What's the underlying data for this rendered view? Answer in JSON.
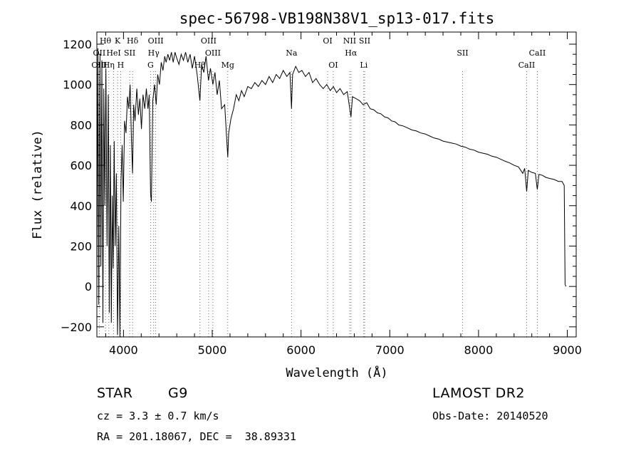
{
  "chart_data": {
    "type": "line",
    "title": "spec-56798-VB198N38V1_sp13-017.fits",
    "xlabel": "Wavelength (Å)",
    "ylabel": "Flux (relative)",
    "xlim": [
      3700,
      9100
    ],
    "ylim": [
      -250,
      1260
    ],
    "xticks": [
      4000,
      5000,
      6000,
      7000,
      8000,
      9000
    ],
    "yticks": [
      -200,
      0,
      200,
      400,
      600,
      800,
      1000,
      1200
    ],
    "grid": false,
    "series": [
      {
        "values": [
          [
            3700,
            -80
          ],
          [
            3712,
            1180
          ],
          [
            3722,
            -90
          ],
          [
            3735,
            1150
          ],
          [
            3745,
            100
          ],
          [
            3756,
            1120
          ],
          [
            3768,
            -180
          ],
          [
            3778,
            980
          ],
          [
            3790,
            400
          ],
          [
            3802,
            1080
          ],
          [
            3815,
            200
          ],
          [
            3828,
            950
          ],
          [
            3840,
            -130
          ],
          [
            3852,
            700
          ],
          [
            3863,
            -180
          ],
          [
            3873,
            450
          ],
          [
            3884,
            90
          ],
          [
            3895,
            720
          ],
          [
            3906,
            200
          ],
          [
            3920,
            560
          ],
          [
            3933,
            -240
          ],
          [
            3947,
            300
          ],
          [
            3960,
            -250
          ],
          [
            3972,
            520
          ],
          [
            3985,
            700
          ],
          [
            3998,
            420
          ],
          [
            4012,
            820
          ],
          [
            4028,
            760
          ],
          [
            4045,
            940
          ],
          [
            4060,
            880
          ],
          [
            4075,
            1000
          ],
          [
            4090,
            720
          ],
          [
            4102,
            560
          ],
          [
            4115,
            900
          ],
          [
            4130,
            820
          ],
          [
            4150,
            980
          ],
          [
            4168,
            850
          ],
          [
            4185,
            930
          ],
          [
            4202,
            780
          ],
          [
            4220,
            950
          ],
          [
            4240,
            880
          ],
          [
            4258,
            980
          ],
          [
            4275,
            880
          ],
          [
            4290,
            950
          ],
          [
            4305,
            460
          ],
          [
            4315,
            420
          ],
          [
            4330,
            920
          ],
          [
            4350,
            1000
          ],
          [
            4368,
            900
          ],
          [
            4385,
            1050
          ],
          [
            4405,
            1000
          ],
          [
            4425,
            1110
          ],
          [
            4445,
            1070
          ],
          [
            4465,
            1140
          ],
          [
            4480,
            1110
          ],
          [
            4500,
            1150
          ],
          [
            4520,
            1120
          ],
          [
            4540,
            1160
          ],
          [
            4560,
            1110
          ],
          [
            4580,
            1160
          ],
          [
            4600,
            1130
          ],
          [
            4625,
            1100
          ],
          [
            4650,
            1150
          ],
          [
            4675,
            1120
          ],
          [
            4700,
            1160
          ],
          [
            4725,
            1110
          ],
          [
            4750,
            1150
          ],
          [
            4775,
            1080
          ],
          [
            4800,
            1140
          ],
          [
            4830,
            1050
          ],
          [
            4861,
            920
          ],
          [
            4880,
            1100
          ],
          [
            4905,
            1060
          ],
          [
            4930,
            1140
          ],
          [
            4957,
            1020
          ],
          [
            4980,
            1080
          ],
          [
            5007,
            1000
          ],
          [
            5030,
            1060
          ],
          [
            5055,
            950
          ],
          [
            5080,
            1020
          ],
          [
            5105,
            880
          ],
          [
            5140,
            900
          ],
          [
            5167,
            700
          ],
          [
            5175,
            640
          ],
          [
            5185,
            760
          ],
          [
            5210,
            830
          ],
          [
            5240,
            880
          ],
          [
            5270,
            950
          ],
          [
            5300,
            920
          ],
          [
            5330,
            970
          ],
          [
            5360,
            940
          ],
          [
            5400,
            990
          ],
          [
            5440,
            980
          ],
          [
            5480,
            1010
          ],
          [
            5520,
            990
          ],
          [
            5560,
            1020
          ],
          [
            5600,
            1000
          ],
          [
            5640,
            1040
          ],
          [
            5680,
            1010
          ],
          [
            5720,
            1050
          ],
          [
            5760,
            1030
          ],
          [
            5800,
            1070
          ],
          [
            5840,
            1040
          ],
          [
            5875,
            1060
          ],
          [
            5893,
            880
          ],
          [
            5905,
            1050
          ],
          [
            5940,
            1090
          ],
          [
            5975,
            1060
          ],
          [
            6010,
            1070
          ],
          [
            6050,
            1040
          ],
          [
            6090,
            1060
          ],
          [
            6130,
            1010
          ],
          [
            6170,
            1030
          ],
          [
            6210,
            1000
          ],
          [
            6250,
            980
          ],
          [
            6290,
            1000
          ],
          [
            6330,
            970
          ],
          [
            6365,
            990
          ],
          [
            6400,
            960
          ],
          [
            6440,
            980
          ],
          [
            6480,
            950
          ],
          [
            6520,
            965
          ],
          [
            6563,
            840
          ],
          [
            6580,
            940
          ],
          [
            6620,
            930
          ],
          [
            6660,
            920
          ],
          [
            6700,
            900
          ],
          [
            6740,
            910
          ],
          [
            6780,
            880
          ],
          [
            6820,
            875
          ],
          [
            6860,
            860
          ],
          [
            6900,
            855
          ],
          [
            6940,
            840
          ],
          [
            6980,
            835
          ],
          [
            7020,
            820
          ],
          [
            7060,
            815
          ],
          [
            7100,
            800
          ],
          [
            7150,
            795
          ],
          [
            7200,
            785
          ],
          [
            7250,
            775
          ],
          [
            7300,
            770
          ],
          [
            7350,
            760
          ],
          [
            7400,
            755
          ],
          [
            7450,
            745
          ],
          [
            7500,
            735
          ],
          [
            7550,
            730
          ],
          [
            7600,
            720
          ],
          [
            7650,
            715
          ],
          [
            7700,
            710
          ],
          [
            7750,
            705
          ],
          [
            7800,
            695
          ],
          [
            7850,
            690
          ],
          [
            7900,
            680
          ],
          [
            7950,
            675
          ],
          [
            8000,
            665
          ],
          [
            8050,
            660
          ],
          [
            8100,
            655
          ],
          [
            8150,
            645
          ],
          [
            8200,
            640
          ],
          [
            8250,
            630
          ],
          [
            8300,
            620
          ],
          [
            8350,
            612
          ],
          [
            8400,
            600
          ],
          [
            8450,
            592
          ],
          [
            8498,
            560
          ],
          [
            8520,
            585
          ],
          [
            8542,
            470
          ],
          [
            8560,
            575
          ],
          [
            8600,
            565
          ],
          [
            8640,
            560
          ],
          [
            8662,
            480
          ],
          [
            8680,
            555
          ],
          [
            8720,
            550
          ],
          [
            8760,
            540
          ],
          [
            8800,
            535
          ],
          [
            8850,
            530
          ],
          [
            8900,
            520
          ],
          [
            8940,
            520
          ],
          [
            8965,
            500
          ],
          [
            8975,
            10
          ],
          [
            8985,
            0
          ]
        ]
      }
    ],
    "spectral_lines": [
      {
        "label": "Hθ",
        "x": 3797,
        "row": 0
      },
      {
        "label": "K",
        "x": 3934,
        "row": 0
      },
      {
        "label": "Hδ",
        "x": 4102,
        "row": 0
      },
      {
        "label": "OIII",
        "x": 4363,
        "row": 0
      },
      {
        "label": "OIII",
        "x": 4959,
        "row": 0
      },
      {
        "label": "OI",
        "x": 6300,
        "row": 0
      },
      {
        "label": "NII",
        "x": 6548,
        "row": 0
      },
      {
        "label": "SII",
        "x": 6717,
        "row": 0
      },
      {
        "label": "OII",
        "x": 3727,
        "row": 1
      },
      {
        "label": "HeI",
        "x": 3889,
        "row": 1
      },
      {
        "label": "SII",
        "x": 4070,
        "row": 1
      },
      {
        "label": "Hγ",
        "x": 4340,
        "row": 1
      },
      {
        "label": "OIII",
        "x": 5007,
        "row": 1
      },
      {
        "label": "Na",
        "x": 5893,
        "row": 1
      },
      {
        "label": "Hα",
        "x": 6563,
        "row": 1
      },
      {
        "label": "SII",
        "x": 7820,
        "row": 1
      },
      {
        "label": "CaII",
        "x": 8662,
        "row": 1
      },
      {
        "label": "OIII",
        "x": 3727,
        "row": 2
      },
      {
        "label": "Hη",
        "x": 3835,
        "row": 2
      },
      {
        "label": "H",
        "x": 3968,
        "row": 2
      },
      {
        "label": "G",
        "x": 4305,
        "row": 2
      },
      {
        "label": "Hβ",
        "x": 4861,
        "row": 2
      },
      {
        "label": "Mg",
        "x": 5175,
        "row": 2
      },
      {
        "label": "OI",
        "x": 6363,
        "row": 2
      },
      {
        "label": "Li",
        "x": 6707,
        "row": 2
      },
      {
        "label": "CaII",
        "x": 8542,
        "row": 2
      }
    ]
  },
  "info": {
    "class": "STAR",
    "subclass": "G9",
    "survey": "LAMOST DR2",
    "cz": "cz = 3.3 ± 0.7 km/s",
    "obs_date": "Obs-Date: 20140520",
    "coords": "RA = 201.18067, DEC =  38.89331"
  }
}
